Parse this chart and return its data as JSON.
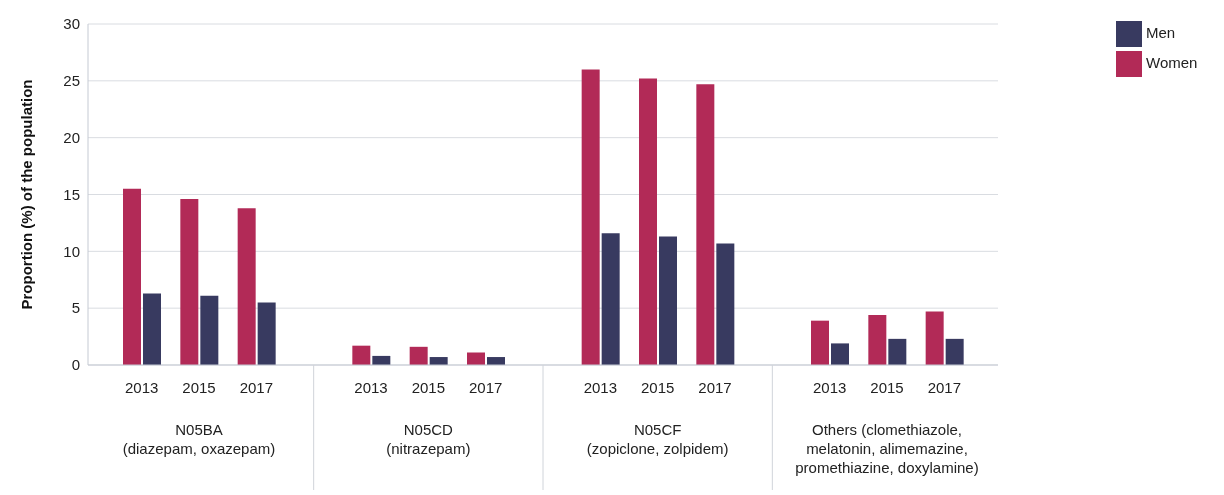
{
  "chart_data": {
    "type": "bar",
    "ylabel": "Proportion (%) of the population",
    "categories": [
      "2013",
      "2015",
      "2017",
      "2013",
      "2015",
      "2017",
      "2013",
      "2015",
      "2017",
      "2013",
      "2015",
      "2017"
    ],
    "annotations": [
      "N05BA\n(diazepam, oxazepam)",
      "N05CD\n(nitrazepam)",
      "N05CF\n(zopiclone, zolpidem)",
      "Others (clomethiazole,\nmelatonin, alimemazine,\npromethiazine, doxylamine)"
    ],
    "series": [
      {
        "name": "Women",
        "color": "#b22a57",
        "values": [
          15.5,
          14.6,
          13.8,
          1.7,
          1.6,
          1.1,
          26.0,
          25.2,
          24.7,
          3.9,
          4.4,
          4.7
        ]
      },
      {
        "name": "Men",
        "color": "#383a60",
        "values": [
          6.3,
          6.1,
          5.5,
          0.8,
          0.7,
          0.7,
          11.6,
          11.3,
          10.7,
          1.9,
          2.3,
          2.3
        ]
      }
    ],
    "ylim": [
      0,
      30
    ],
    "yticks": [
      0,
      5,
      10,
      15,
      20,
      25,
      30
    ],
    "grid": "y",
    "legend": "top right"
  }
}
